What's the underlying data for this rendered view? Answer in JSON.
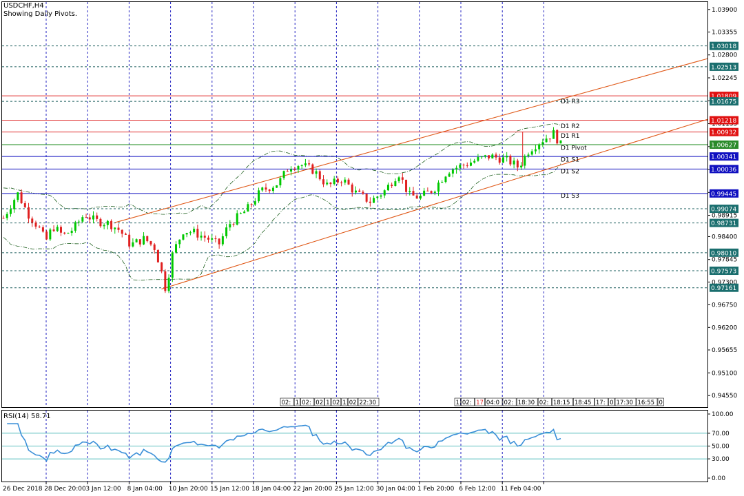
{
  "chart_data": {
    "type": "candlestick",
    "title": "USDCHF,H4",
    "subtitle": "Showing Daily Pivots.",
    "symbol": "USDCHF",
    "timeframe": "H4",
    "price_axis": {
      "range": [
        0.9427,
        1.0408
      ],
      "ticks": [
        "1.03900",
        "1.03355",
        "1.02800",
        "1.02245",
        "1.01690",
        "1.01135",
        "1.00580",
        "1.00025",
        "0.99470",
        "0.98915",
        "0.98400",
        "0.97845",
        "0.97300",
        "0.96750",
        "0.96200",
        "0.95655",
        "0.95100",
        "0.94550"
      ]
    },
    "time_axis_labels": [
      "26 Dec 2018",
      "28 Dec 20:00",
      "3 Jan 12:00",
      "8 Jan 04:00",
      "10 Jan 20:00",
      "15 Jan 12:00",
      "18 Jan 04:00",
      "22 Jan 20:00",
      "25 Jan 12:00",
      "30 Jan 04:00",
      "1 Feb 20:00",
      "6 Feb 12:00",
      "11 Feb 04:00"
    ],
    "horizontal_levels": [
      {
        "label": "1.03018",
        "value": 1.03018,
        "style": "dashed",
        "color": "#1a5c5c",
        "tag_bg": "#1a6e6e"
      },
      {
        "label": "1.02513",
        "value": 1.02513,
        "style": "dashed",
        "color": "#1a5c5c",
        "tag_bg": "#1a6e6e"
      },
      {
        "label": "1.01809",
        "value": 1.01809,
        "style": "solid",
        "color": "#e03030",
        "tag_bg": "#e01010"
      },
      {
        "label": "1.01675",
        "value": 1.01675,
        "style": "dashed",
        "color": "#1a5c5c",
        "tag_bg": "#1a6e6e"
      },
      {
        "label": "1.01218",
        "value": 1.01218,
        "style": "solid",
        "color": "#e03030",
        "tag_bg": "#e01010"
      },
      {
        "label": "1.00932",
        "value": 1.00932,
        "style": "solid",
        "color": "#e03030",
        "tag_bg": "#e01010"
      },
      {
        "label": "1.00627",
        "value": 1.00627,
        "style": "solid",
        "color": "#1a8a1a",
        "tag_bg": "#2a8a2a"
      },
      {
        "label": "1.00341",
        "value": 1.00341,
        "style": "solid",
        "color": "#1010c0",
        "tag_bg": "#1010c0"
      },
      {
        "label": "1.00036",
        "value": 1.00036,
        "style": "solid",
        "color": "#1010c0",
        "tag_bg": "#1010c0"
      },
      {
        "label": "0.99445",
        "value": 0.99445,
        "style": "solid",
        "color": "#1010c0",
        "tag_bg": "#1010c0"
      },
      {
        "label": "0.99074",
        "value": 0.99074,
        "style": "dashed",
        "color": "#1a5c5c",
        "tag_bg": "#1a6e6e"
      },
      {
        "label": "0.98731",
        "value": 0.98731,
        "style": "dashed",
        "color": "#1a5c5c",
        "tag_bg": "#1a6e6e"
      },
      {
        "label": "0.98010",
        "value": 0.9801,
        "style": "dashed",
        "color": "#1a5c5c",
        "tag_bg": "#1a6e6e"
      },
      {
        "label": "0.97573",
        "value": 0.97573,
        "style": "dashed",
        "color": "#1a5c5c",
        "tag_bg": "#1a6e6e"
      },
      {
        "label": "0.97161",
        "value": 0.97161,
        "style": "dashed",
        "color": "#1a5c5c",
        "tag_bg": "#1a6e6e"
      }
    ],
    "pivot_labels": [
      {
        "text": "D1 R3",
        "value": 1.0168
      },
      {
        "text": "D1 R2",
        "value": 1.0108
      },
      {
        "text": "D1 R1",
        "value": 1.0084
      },
      {
        "text": "D1 Pivot",
        "value": 1.0055
      },
      {
        "text": "D1 S1",
        "value": 1.0027
      },
      {
        "text": "D1 S2",
        "value": 0.9998
      },
      {
        "text": "D1 S3",
        "value": 0.9939
      }
    ],
    "channel_lines": [
      {
        "from": [
          0.16,
          0.9874
        ],
        "to": [
          1.0,
          1.0271
        ]
      },
      {
        "from": [
          0.226,
          0.9713
        ],
        "to": [
          1.0,
          1.0124
        ]
      }
    ],
    "ohlc_path": [
      [
        0.0,
        0.9885
      ],
      [
        0.02,
        0.9945
      ],
      [
        0.035,
        0.9895
      ],
      [
        0.05,
        0.9862
      ],
      [
        0.06,
        0.9828
      ],
      [
        0.07,
        0.9865
      ],
      [
        0.085,
        0.9842
      ],
      [
        0.1,
        0.986
      ],
      [
        0.115,
        0.9895
      ],
      [
        0.13,
        0.9878
      ],
      [
        0.15,
        0.9872
      ],
      [
        0.165,
        0.9855
      ],
      [
        0.18,
        0.982
      ],
      [
        0.2,
        0.9835
      ],
      [
        0.215,
        0.9812
      ],
      [
        0.226,
        0.9742
      ],
      [
        0.23,
        0.9712
      ],
      [
        0.24,
        0.98
      ],
      [
        0.255,
        0.9855
      ],
      [
        0.27,
        0.985
      ],
      [
        0.29,
        0.9835
      ],
      [
        0.305,
        0.982
      ],
      [
        0.32,
        0.987
      ],
      [
        0.345,
        0.9905
      ],
      [
        0.365,
        0.995
      ],
      [
        0.39,
        0.997
      ],
      [
        0.405,
        1.001
      ],
      [
        0.42,
        1.0015
      ],
      [
        0.44,
        1.0
      ],
      [
        0.46,
        0.9962
      ],
      [
        0.48,
        0.998
      ],
      [
        0.5,
        0.9945
      ],
      [
        0.52,
        0.9925
      ],
      [
        0.54,
        0.995
      ],
      [
        0.56,
        0.9995
      ],
      [
        0.575,
        0.994
      ],
      [
        0.59,
        0.9935
      ],
      [
        0.61,
        0.9955
      ],
      [
        0.63,
        1.0
      ],
      [
        0.65,
        1.0012
      ],
      [
        0.67,
        1.0025
      ],
      [
        0.69,
        1.0035
      ],
      [
        0.715,
        1.0025
      ],
      [
        0.73,
        1.0008
      ],
      [
        0.745,
        1.005
      ],
      [
        0.76,
        1.007
      ],
      [
        0.78,
        1.009
      ],
      [
        0.79,
        1.0062
      ],
      [
        0.785,
        1.0065
      ]
    ],
    "spike": {
      "x": 0.738,
      "high": 1.0094,
      "low": 1.001
    },
    "rsi": {
      "label": "RSI(14) 58.71",
      "period": 14,
      "value": 58.71,
      "ticks": [
        "100.00",
        "70.00",
        "50.00",
        "30.00",
        "0.00"
      ],
      "levels": [
        70,
        50,
        30
      ],
      "range": [
        0,
        100
      ]
    },
    "timestamp_tags": [
      "02:",
      "1",
      "02:",
      "02",
      "1",
      "02",
      "1",
      "02",
      "22:30",
      "1",
      "02:",
      "17",
      "04:0",
      "02:",
      "18:30",
      "02:",
      "18:15",
      "18:45",
      "17:",
      "0",
      "17:30",
      "16:55",
      "0"
    ],
    "grid": "dashed vertical",
    "colors": {
      "up": "#00c800",
      "down": "#e02020",
      "bands": "#1a5c1a",
      "channel": "#e05a1a",
      "rsi": "#3a8fd8",
      "grid": "#2020c0"
    }
  }
}
